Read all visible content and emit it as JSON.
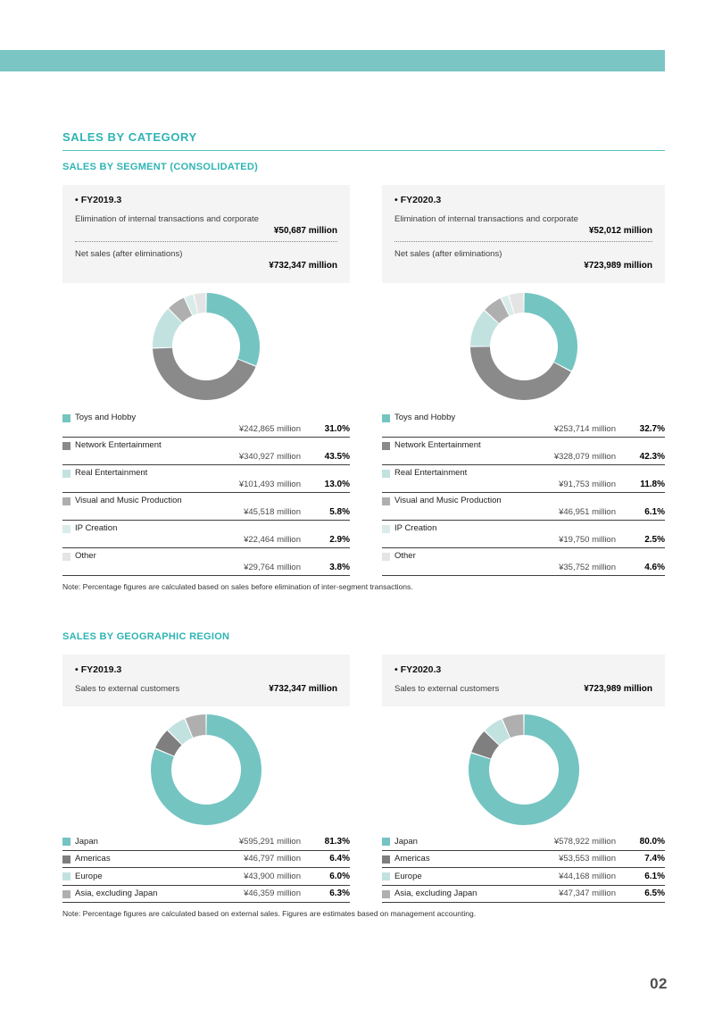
{
  "glyphs": {
    "bullet": "•"
  },
  "colors": {
    "top_bar": "#7BC5C5",
    "accent": "#2FB4B4",
    "teal": "#74C4C2",
    "dark_gray": "#8A8A8A",
    "americas_gray": "#7F7F7F",
    "light_teal": "#C2E2E0",
    "mid_gray": "#AFAFAF",
    "pale_teal": "#D9ECEA",
    "light_gray": "#E4E4E4"
  },
  "page_number": "02",
  "section_title": "SALES BY CATEGORY",
  "segment_section": {
    "title": "SALES BY SEGMENT (CONSOLIDATED)",
    "note": "Note: Percentage figures are calculated based on sales before elimination of inter-segment transactions.",
    "columns": [
      {
        "fiscal_year": "FY2019.3",
        "summary_rows": [
          {
            "label": "Elimination of internal transactions and corporate",
            "value": "¥50,687 million"
          },
          {
            "label": "Net sales (after eliminations)",
            "value": "¥732,347 million"
          }
        ],
        "items": [
          {
            "label": "Toys and Hobby",
            "amount": "¥242,865 million",
            "percent": "31.0%",
            "value": 31.0,
            "color": "#74C4C2"
          },
          {
            "label": "Network Entertainment",
            "amount": "¥340,927 million",
            "percent": "43.5%",
            "value": 43.5,
            "color": "#8A8A8A"
          },
          {
            "label": "Real Entertainment",
            "amount": "¥101,493 million",
            "percent": "13.0%",
            "value": 13.0,
            "color": "#C2E2E0"
          },
          {
            "label": "Visual and Music Production",
            "amount": "¥45,518 million",
            "percent": "5.8%",
            "value": 5.8,
            "color": "#AFAFAF"
          },
          {
            "label": "IP Creation",
            "amount": "¥22,464 million",
            "percent": "2.9%",
            "value": 2.9,
            "color": "#D9ECEA"
          },
          {
            "label": "Other",
            "amount": "¥29,764 million",
            "percent": "3.8%",
            "value": 3.8,
            "color": "#E4E4E4"
          }
        ]
      },
      {
        "fiscal_year": "FY2020.3",
        "summary_rows": [
          {
            "label": "Elimination of internal transactions and corporate",
            "value": "¥52,012 million"
          },
          {
            "label": "Net sales (after eliminations)",
            "value": "¥723,989 million"
          }
        ],
        "items": [
          {
            "label": "Toys and Hobby",
            "amount": "¥253,714 million",
            "percent": "32.7%",
            "value": 32.7,
            "color": "#74C4C2"
          },
          {
            "label": "Network Entertainment",
            "amount": "¥328,079 million",
            "percent": "42.3%",
            "value": 42.3,
            "color": "#8A8A8A"
          },
          {
            "label": "Real Entertainment",
            "amount": "¥91,753 million",
            "percent": "11.8%",
            "value": 11.8,
            "color": "#C2E2E0"
          },
          {
            "label": "Visual and Music Production",
            "amount": "¥46,951 million",
            "percent": "6.1%",
            "value": 6.1,
            "color": "#AFAFAF"
          },
          {
            "label": "IP Creation",
            "amount": "¥19,750 million",
            "percent": "2.5%",
            "value": 2.5,
            "color": "#D9ECEA"
          },
          {
            "label": "Other",
            "amount": "¥35,752 million",
            "percent": "4.6%",
            "value": 4.6,
            "color": "#E4E4E4"
          }
        ]
      }
    ]
  },
  "region_section": {
    "title": "SALES BY GEOGRAPHIC REGION",
    "note": "Note: Percentage figures are calculated based on external sales. Figures are estimates based on management accounting.",
    "columns": [
      {
        "fiscal_year": "FY2019.3",
        "summary_rows": [
          {
            "label": "Sales to external customers",
            "value": "¥732,347 million"
          }
        ],
        "items": [
          {
            "label": "Japan",
            "amount": "¥595,291 million",
            "percent": "81.3%",
            "value": 81.3,
            "color": "#74C4C2"
          },
          {
            "label": "Americas",
            "amount": "¥46,797 million",
            "percent": "6.4%",
            "value": 6.4,
            "color": "#7F7F7F"
          },
          {
            "label": "Europe",
            "amount": "¥43,900 million",
            "percent": "6.0%",
            "value": 6.0,
            "color": "#C2E2E0"
          },
          {
            "label": "Asia, excluding Japan",
            "amount": "¥46,359 million",
            "percent": "6.3%",
            "value": 6.3,
            "color": "#AFAFAF"
          }
        ]
      },
      {
        "fiscal_year": "FY2020.3",
        "summary_rows": [
          {
            "label": "Sales to external customers",
            "value": "¥723,989 million"
          }
        ],
        "items": [
          {
            "label": "Japan",
            "amount": "¥578,922 million",
            "percent": "80.0%",
            "value": 80.0,
            "color": "#74C4C2"
          },
          {
            "label": "Americas",
            "amount": "¥53,553 million",
            "percent": "7.4%",
            "value": 7.4,
            "color": "#7F7F7F"
          },
          {
            "label": "Europe",
            "amount": "¥44,168 million",
            "percent": "6.1%",
            "value": 6.1,
            "color": "#C2E2E0"
          },
          {
            "label": "Asia, excluding Japan",
            "amount": "¥47,347 million",
            "percent": "6.5%",
            "value": 6.5,
            "color": "#AFAFAF"
          }
        ]
      }
    ]
  },
  "chart_data": [
    {
      "type": "pie",
      "title": "Sales by segment FY2019.3 (donut)",
      "categories": [
        "Toys and Hobby",
        "Network Entertainment",
        "Real Entertainment",
        "Visual and Music Production",
        "IP Creation",
        "Other"
      ],
      "values": [
        31.0,
        43.5,
        13.0,
        5.8,
        2.9,
        3.8
      ],
      "amounts_million_yen": [
        242865,
        340927,
        101493,
        45518,
        22464,
        29764
      ],
      "legend_position": "below",
      "start_angle_deg": 0,
      "direction": "clockwise"
    },
    {
      "type": "pie",
      "title": "Sales by segment FY2020.3 (donut)",
      "categories": [
        "Toys and Hobby",
        "Network Entertainment",
        "Real Entertainment",
        "Visual and Music Production",
        "IP Creation",
        "Other"
      ],
      "values": [
        32.7,
        42.3,
        11.8,
        6.1,
        2.5,
        4.6
      ],
      "amounts_million_yen": [
        253714,
        328079,
        91753,
        46951,
        19750,
        35752
      ],
      "legend_position": "below",
      "start_angle_deg": 0,
      "direction": "clockwise"
    },
    {
      "type": "pie",
      "title": "Sales by geographic region FY2019.3 (donut)",
      "categories": [
        "Japan",
        "Americas",
        "Europe",
        "Asia, excluding Japan"
      ],
      "values": [
        81.3,
        6.4,
        6.0,
        6.3
      ],
      "amounts_million_yen": [
        595291,
        46797,
        43900,
        46359
      ],
      "legend_position": "below",
      "start_angle_deg": 0,
      "direction": "clockwise"
    },
    {
      "type": "pie",
      "title": "Sales by geographic region FY2020.3 (donut)",
      "categories": [
        "Japan",
        "Americas",
        "Europe",
        "Asia, excluding Japan"
      ],
      "values": [
        80.0,
        7.4,
        6.1,
        6.5
      ],
      "amounts_million_yen": [
        578922,
        53553,
        44168,
        47347
      ],
      "legend_position": "below",
      "start_angle_deg": 0,
      "direction": "clockwise"
    }
  ]
}
